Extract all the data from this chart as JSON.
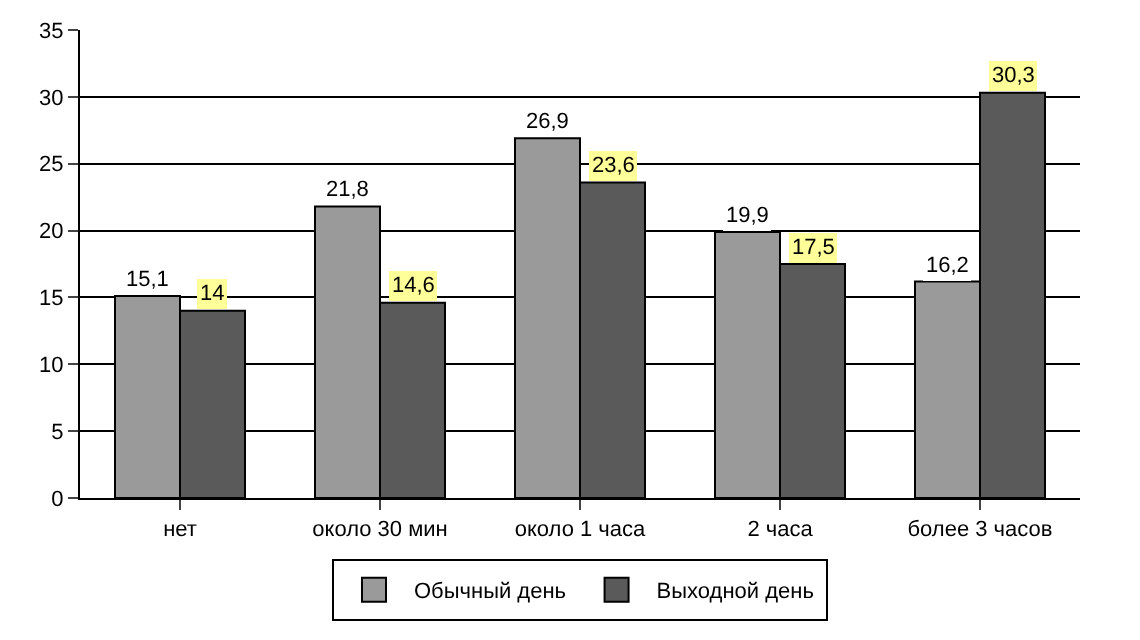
{
  "chart_data": {
    "type": "bar",
    "categories": [
      "нет",
      "около 30 мин",
      "около 1 часа",
      "2 часа",
      "более 3 часов"
    ],
    "series": [
      {
        "name": "Обычный день",
        "color": "#9a9a9a",
        "values": [
          15.1,
          21.8,
          26.9,
          19.9,
          16.2
        ],
        "value_labels": [
          "15,1",
          "21,8",
          "26,9",
          "19,9",
          "16,2"
        ]
      },
      {
        "name": "Выходной день",
        "color": "#5a5a5a",
        "values": [
          14,
          14.6,
          23.6,
          17.5,
          30.3
        ],
        "value_labels": [
          "14",
          "14,6",
          "23,6",
          "17,5",
          "30,3"
        ]
      }
    ],
    "ylim": [
      0,
      35
    ],
    "yticks": [
      0,
      5,
      10,
      15,
      20,
      25,
      30,
      35
    ],
    "grid": "y",
    "legend": "bottom"
  }
}
